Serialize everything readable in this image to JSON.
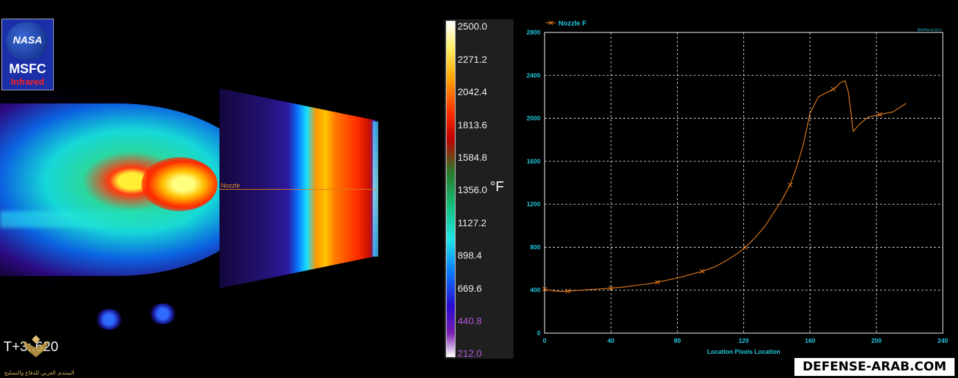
{
  "logo": {
    "org": "NASA",
    "center": "MSFC",
    "mode": "Infrared"
  },
  "time_label": "T+3:.620",
  "scanline_label": "Nozzle",
  "watermark_text": "المنتدى العربي للدفاع والتسليح",
  "colors": {
    "line": "#e07a1c",
    "axis_text": "#22c8e0",
    "grid": "#ffffff"
  },
  "scale": {
    "unit": "°F",
    "ticks": [
      "2500.0",
      "2271.2",
      "2042.4",
      "1813.6",
      "1584.8",
      "1356.0",
      "1127.2",
      "898.4",
      "669.6",
      "440.8",
      "212.0"
    ]
  },
  "chart_data": {
    "type": "line",
    "title": "",
    "xlabel": "Location  Pixels  Location",
    "ylabel": "",
    "xlim": [
      0,
      240
    ],
    "ylim": [
      0,
      2800
    ],
    "x_ticks": [
      0,
      40,
      80,
      120,
      160,
      200,
      240
    ],
    "y_ticks": [
      0,
      400,
      800,
      1200,
      1600,
      2000,
      2400,
      2800
    ],
    "grid": true,
    "legend": "top-left",
    "series": [
      {
        "name": "Nozzle F",
        "marker": "x",
        "x": [
          0,
          5,
          10,
          15,
          20,
          27,
          34,
          41,
          48,
          55,
          62,
          69,
          76,
          83,
          90,
          96,
          103,
          110,
          116,
          121,
          127,
          133,
          138,
          143,
          148,
          152,
          156,
          160,
          165,
          170,
          175,
          178,
          181,
          183,
          186,
          190,
          195,
          200,
          205,
          210,
          215,
          218
        ],
        "y": [
          410,
          395,
          388,
          392,
          398,
          405,
          412,
          420,
          430,
          445,
          458,
          478,
          500,
          525,
          555,
          580,
          620,
          680,
          740,
          800,
          890,
          1000,
          1120,
          1240,
          1380,
          1550,
          1760,
          2050,
          2200,
          2240,
          2280,
          2330,
          2350,
          2250,
          1880,
          1950,
          2010,
          2030,
          2045,
          2060,
          2110,
          2140
        ]
      }
    ],
    "marker_x": [
      0,
      14,
      40,
      68,
      95,
      121,
      148,
      174,
      202
    ],
    "corner_note": "WinPlot v1.53.3"
  },
  "site_badge": "DEFENSE-ARAB.COM"
}
